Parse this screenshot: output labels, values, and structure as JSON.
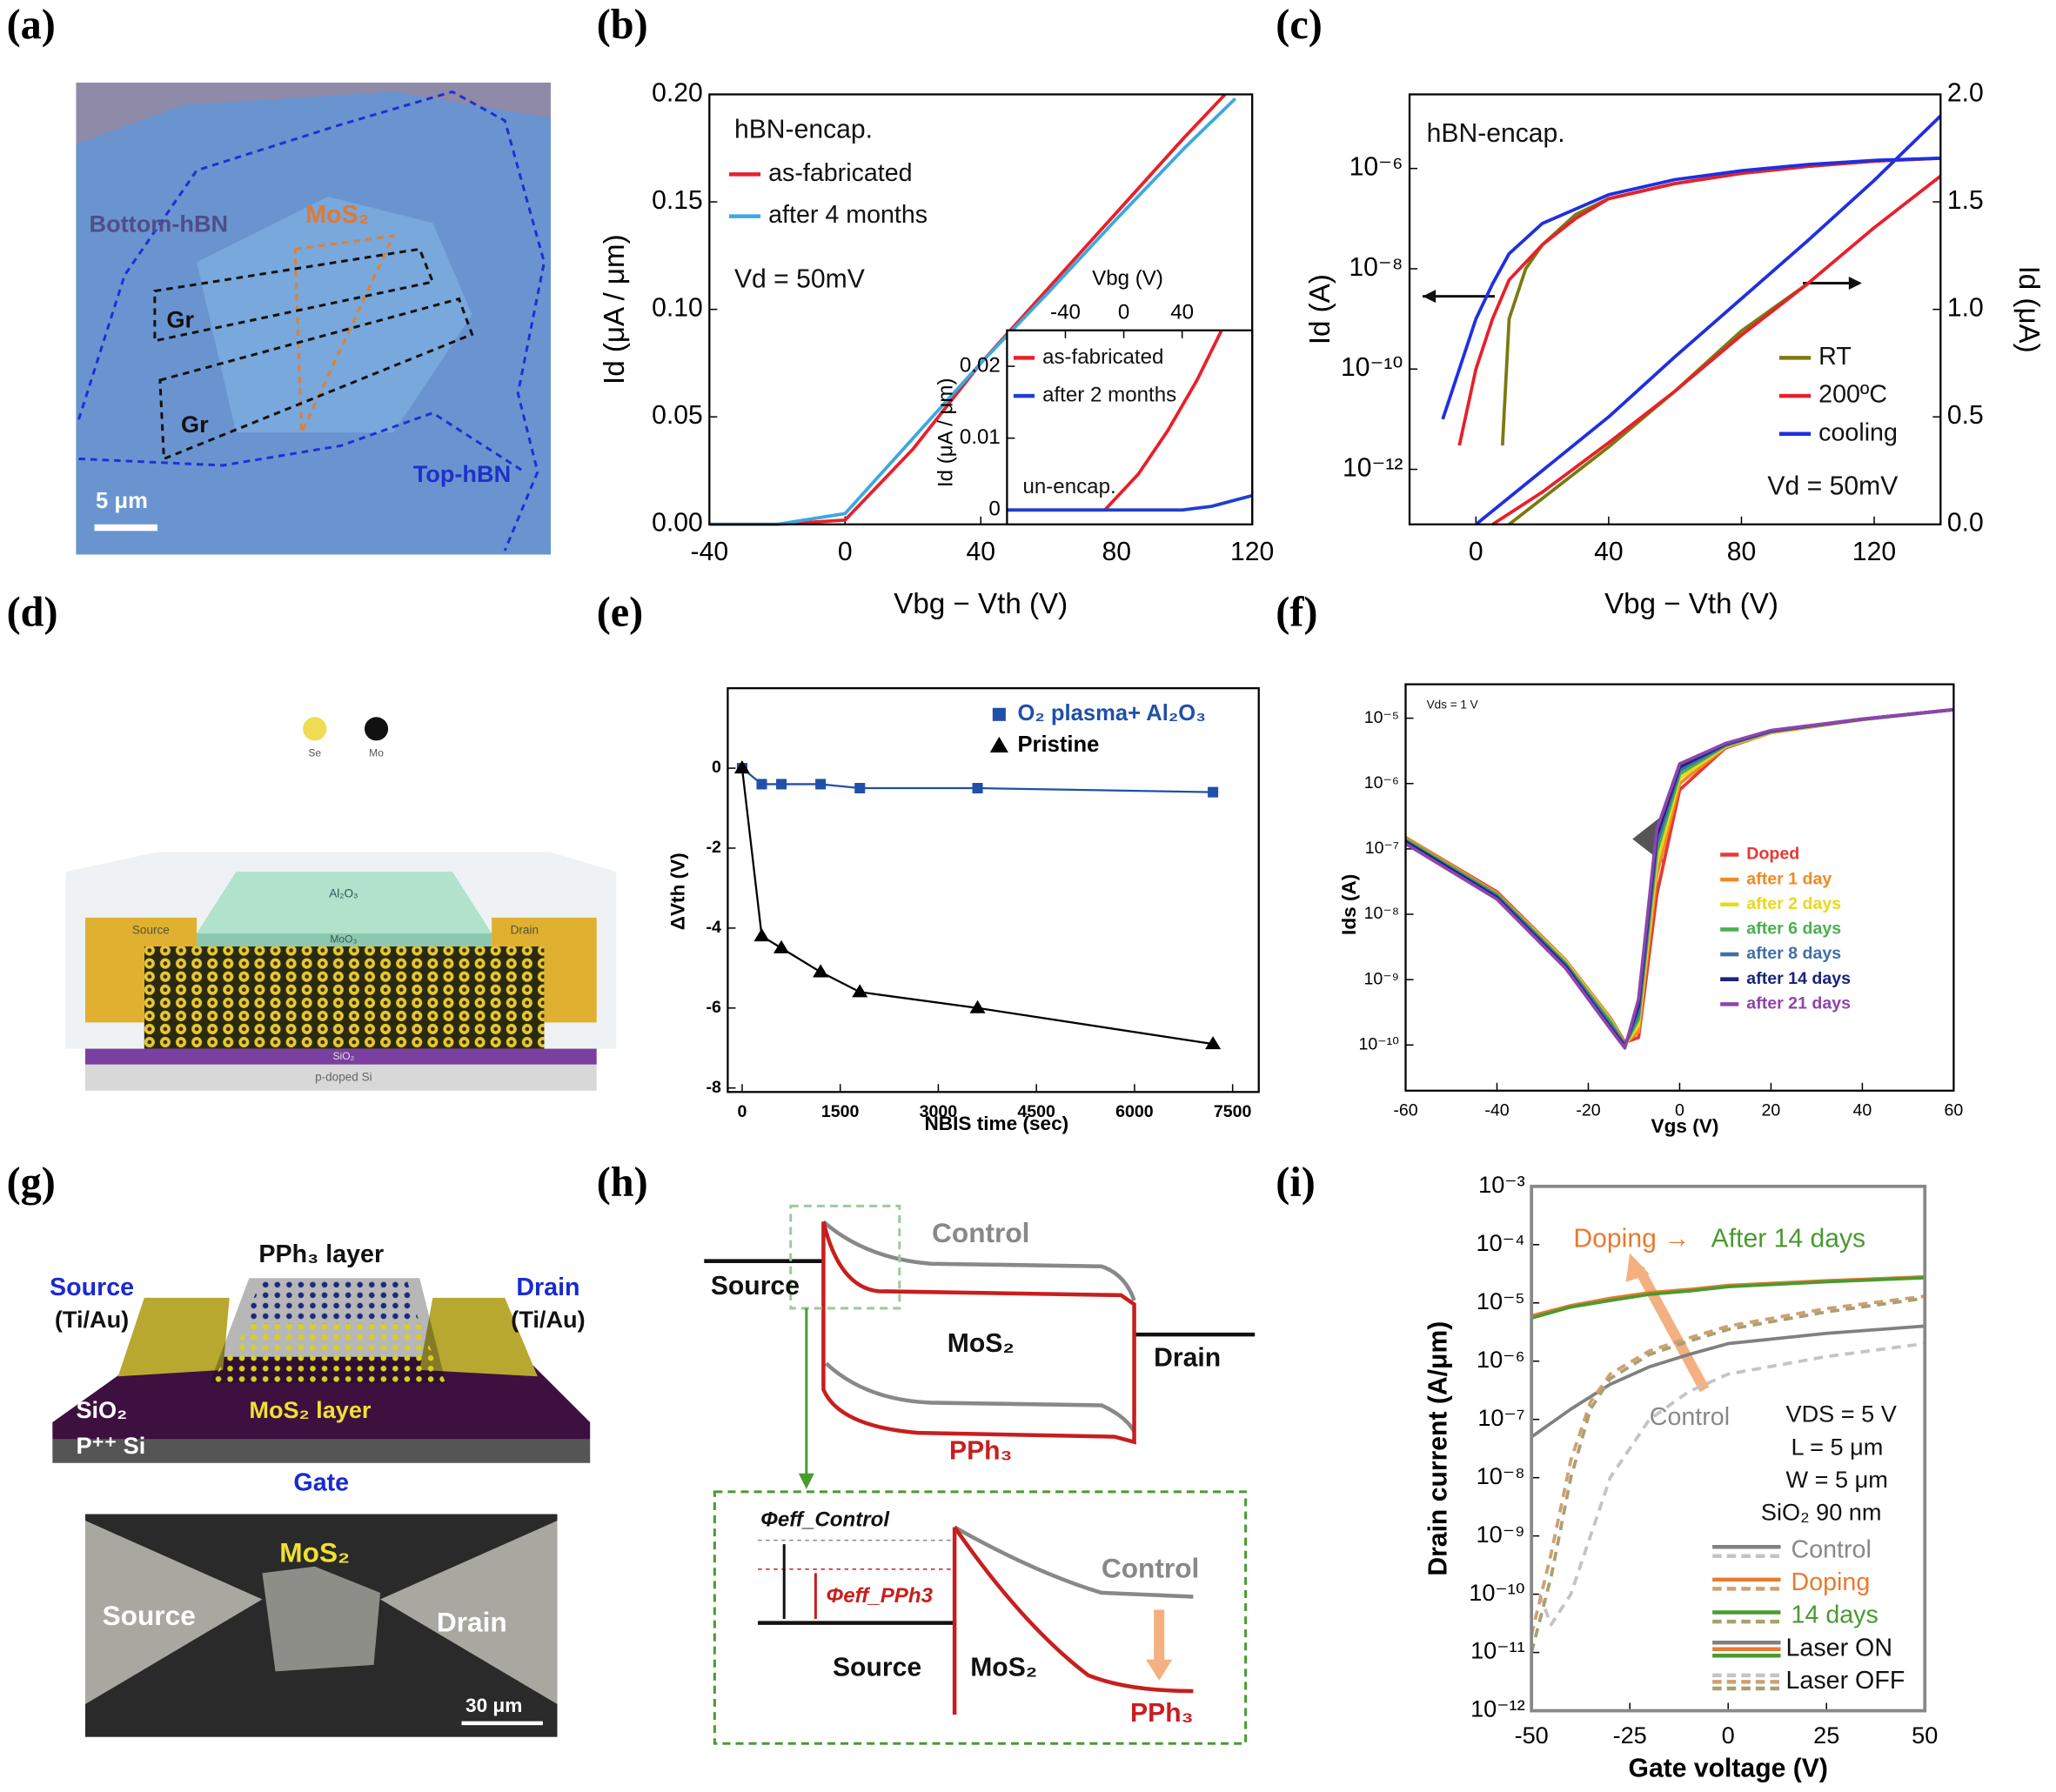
{
  "panel_labels": [
    "(a)",
    "(b)",
    "(c)",
    "(d)",
    "(e)",
    "(f)",
    "(g)",
    "(h)",
    "(i)"
  ],
  "panels": {
    "a": [
      "Bottom-hBN",
      "MoS₂",
      "Gr",
      "Gr",
      "Top-hBN",
      "5 μm"
    ],
    "d": [
      "Se",
      "Mo",
      "Al₂O₃",
      "Source",
      "Drain",
      "MoO₃",
      "SiO₂",
      "p-doped Si"
    ],
    "g": [
      "PPh₃ layer",
      "Source",
      "(Ti/Au)",
      "Drain",
      "(Ti/Au)",
      "SiO₂",
      "MoS₂ layer",
      "P⁺⁺ Si",
      "Gate",
      "MoS₂",
      "Source",
      "Drain",
      "30 μm"
    ],
    "h": [
      "Control",
      "Source",
      "MoS₂",
      "Drain",
      "PPh₃",
      "Φeff_Control",
      "Φeff_PPh3",
      "Control",
      "Source",
      "MoS₂",
      "PPh₃"
    ]
  },
  "chart_data": [
    {
      "type": "line",
      "annotations": [
        "hBN-encap.",
        "Vd = 50mV"
      ],
      "xlabel": "Vbg − Vth (V)",
      "ylabel": "Id (μA / μm)",
      "xlim": [
        -40,
        120
      ],
      "xticks": [
        -40,
        0,
        40,
        80,
        120
      ],
      "ylim": [
        0,
        0.2
      ],
      "yticks": [
        {
          "value": 0,
          "label": "0.00"
        },
        0.05,
        {
          "value": 0.1,
          "label": "0.10"
        },
        0.15,
        {
          "value": 0.2,
          "label": "0.20"
        }
      ],
      "series": [
        {
          "name": "as-fabricated",
          "color": "#e8202a",
          "x": [
            -40,
            -20,
            0,
            20,
            40,
            60,
            80,
            100,
            112
          ],
          "values": [
            0,
            0,
            0.002,
            0.035,
            0.075,
            0.11,
            0.145,
            0.18,
            0.2
          ]
        },
        {
          "name": "after 4 months",
          "color": "#3ca8e0",
          "x": [
            -40,
            -20,
            0,
            20,
            40,
            60,
            80,
            100,
            115
          ],
          "values": [
            0,
            0,
            0.005,
            0.04,
            0.075,
            0.108,
            0.142,
            0.175,
            0.198
          ]
        }
      ]
    },
    {
      "type": "line",
      "annotations": [
        "un-encap."
      ],
      "xlabel": "Vbg (V)",
      "ylabel": "Id (μA / μm)",
      "xlim": [
        -80,
        88
      ],
      "xticks": [
        -40,
        0,
        40
      ],
      "ylim": [
        -0.002,
        0.025
      ],
      "yticks": [
        0,
        0.01,
        0.02
      ],
      "series": [
        {
          "name": "as-fabricated",
          "color": "#e8202a",
          "x": [
            -80,
            -13,
            10,
            30,
            50,
            67
          ],
          "values": [
            0,
            0,
            0.005,
            0.011,
            0.018,
            0.025
          ]
        },
        {
          "name": "after 2 months",
          "color": "#1f3fd0",
          "x": [
            -80,
            40,
            60,
            88
          ],
          "values": [
            0,
            0,
            0.0005,
            0.002
          ]
        }
      ]
    },
    {
      "type": "line",
      "annotations": [
        "hBN-encap.",
        "Vd = 50mV"
      ],
      "xlabel": "Vbg − Vth (V)",
      "ylabel": "Id (A)",
      "y2label": "Id (μA)",
      "log_y": true,
      "xlim": [
        -20,
        140
      ],
      "xticks": [
        0,
        40,
        80,
        120
      ],
      "ylim": [
        8e-14,
        3e-05
      ],
      "yticks": [
        {
          "value": 1e-12,
          "label": "10⁻¹²"
        },
        {
          "value": 1e-10,
          "label": "10⁻¹⁰"
        },
        {
          "value": 1e-08,
          "label": "10⁻⁸"
        },
        {
          "value": 1e-06,
          "label": "10⁻⁶"
        }
      ],
      "y2lim": [
        0,
        2
      ],
      "y2ticks": [
        {
          "value": 0,
          "label": "0.0"
        },
        0.5,
        {
          "value": 1,
          "label": "1.0"
        },
        1.5,
        {
          "value": 2,
          "label": "2.0"
        }
      ],
      "series": [
        {
          "name": "RT",
          "color": "#7a7a10",
          "x": [
            8,
            10,
            15,
            20,
            30,
            40,
            60,
            80,
            100,
            120,
            140
          ],
          "values": [
            3e-12,
            1e-09,
            1e-08,
            3e-08,
            1.2e-07,
            2.5e-07,
            5e-07,
            8e-07,
            1.1e-06,
            1.4e-06,
            1.6e-06
          ]
        },
        {
          "name": "200ºC",
          "color": "#e8202a",
          "x": [
            -5,
            0,
            5,
            10,
            20,
            30,
            40,
            60,
            80,
            100,
            120,
            140
          ],
          "values": [
            3e-12,
            1e-10,
            1e-09,
            6e-09,
            3e-08,
            1e-07,
            2.5e-07,
            5e-07,
            8e-07,
            1.1e-06,
            1.4e-06,
            1.6e-06
          ]
        },
        {
          "name": "cooling",
          "color": "#1f2fe0",
          "x": [
            -10,
            -5,
            0,
            5,
            10,
            20,
            40,
            60,
            80,
            100,
            120,
            140
          ],
          "values": [
            1e-11,
            1e-10,
            1e-09,
            5e-09,
            2e-08,
            8e-08,
            3e-07,
            6e-07,
            9e-07,
            1.2e-06,
            1.45e-06,
            1.6e-06
          ]
        },
        {
          "name": "RT",
          "color": "#7a7a10",
          "axis": "y2",
          "x": [
            10,
            20,
            40,
            60,
            80,
            100
          ],
          "values": [
            0,
            0.12,
            0.36,
            0.62,
            0.9,
            1.12
          ]
        },
        {
          "name": "200ºC",
          "color": "#e8202a",
          "axis": "y2",
          "x": [
            5,
            20,
            40,
            60,
            80,
            100,
            120,
            140
          ],
          "values": [
            0,
            0.15,
            0.38,
            0.62,
            0.88,
            1.12,
            1.38,
            1.62
          ]
        },
        {
          "name": "cooling",
          "color": "#1f2fe0",
          "axis": "y2",
          "x": [
            0,
            20,
            40,
            60,
            80,
            100,
            120,
            140
          ],
          "values": [
            0,
            0.25,
            0.5,
            0.78,
            1.05,
            1.32,
            1.6,
            1.9
          ]
        }
      ]
    },
    {
      "type": "line",
      "xlabel": "NBIS time (sec)",
      "ylabel": "ΔVth (V)",
      "xlim": [
        -220,
        7900
      ],
      "xticks": [
        0,
        1500,
        3000,
        4500,
        6000,
        7500
      ],
      "ylim": [
        -8.1,
        2
      ],
      "yticks": [
        0,
        -2,
        -4,
        -6,
        -8
      ],
      "series": [
        {
          "name": "O₂ plasma+ Al₂O₃",
          "color": "#2050a8",
          "marker": "square",
          "x": [
            0,
            300,
            600,
            1200,
            1800,
            3600,
            7200
          ],
          "values": [
            0,
            -0.4,
            -0.4,
            -0.4,
            -0.5,
            -0.5,
            -0.6
          ]
        },
        {
          "name": "Pristine",
          "color": "#000000",
          "marker": "triangle",
          "x": [
            0,
            300,
            600,
            1200,
            1800,
            3600,
            7200
          ],
          "values": [
            0,
            -4.2,
            -4.5,
            -5.1,
            -5.6,
            -6,
            -6.9
          ]
        }
      ]
    },
    {
      "type": "line",
      "annotations": [
        "Vds = 1 V"
      ],
      "xlabel": "Vgs (V)",
      "ylabel": "Ids (A)",
      "log_y": true,
      "xlim": [
        -60,
        60
      ],
      "xticks": [
        -60,
        -40,
        -20,
        0,
        20,
        40,
        60
      ],
      "ylim": [
        2e-11,
        3.3e-05
      ],
      "yticks": [
        {
          "value": 1e-10,
          "label": "10⁻¹⁰"
        },
        {
          "value": 1e-09,
          "label": "10⁻⁹"
        },
        {
          "value": 1e-08,
          "label": "10⁻⁸"
        },
        {
          "value": 1e-07,
          "label": "10⁻⁷"
        },
        {
          "value": 1e-06,
          "label": "10⁻⁶"
        },
        {
          "value": 1e-05,
          "label": "10⁻⁵"
        }
      ],
      "x": [
        -60,
        -40,
        -25,
        -15,
        -12,
        -9,
        -5,
        0,
        10,
        20,
        40,
        60
      ],
      "series": [
        {
          "name": "Doped",
          "color": "#e53935",
          "values": [
            1.5e-07,
            2.2e-08,
            2e-09,
            2.5e-10,
            1.1e-10,
            1.3e-10,
            2e-08,
            8e-07,
            3.5e-06,
            6e-06,
            9.5e-06,
            1.35e-05
          ]
        },
        {
          "name": "after 1 day",
          "color": "#f08a24",
          "values": [
            1.5e-07,
            2.1e-08,
            2e-09,
            2.5e-10,
            1.05e-10,
            1.6e-10,
            4e-08,
            1e-06,
            3.6e-06,
            6e-06,
            9.5e-06,
            1.35e-05
          ]
        },
        {
          "name": "after 2 days",
          "color": "#e8d81e",
          "values": [
            1.4e-07,
            2e-08,
            1.9e-09,
            2.3e-10,
            1e-10,
            2e-10,
            6e-08,
            1.2e-06,
            3.7e-06,
            6.1e-06,
            9.5e-06,
            1.35e-05
          ]
        },
        {
          "name": "after 6 days",
          "color": "#4caf50",
          "values": [
            1.4e-07,
            2e-08,
            1.8e-09,
            2.2e-10,
            1e-10,
            2.5e-10,
            9e-08,
            1.4e-06,
            3.8e-06,
            6.2e-06,
            9.6e-06,
            1.35e-05
          ]
        },
        {
          "name": "after 8 days",
          "color": "#3f6fa8",
          "values": [
            1.3e-07,
            1.9e-08,
            1.7e-09,
            2e-10,
            1e-10,
            3e-10,
            1.2e-07,
            1.6e-06,
            3.9e-06,
            6.3e-06,
            9.6e-06,
            1.35e-05
          ]
        },
        {
          "name": "after 14 days",
          "color": "#1a237e",
          "values": [
            1.3e-07,
            1.8e-08,
            1.6e-09,
            1.8e-10,
            9.5e-11,
            4e-10,
            1.6e-07,
            1.8e-06,
            4e-06,
            6.4e-06,
            9.7e-06,
            1.35e-05
          ]
        },
        {
          "name": "after 21 days",
          "color": "#8e44ad",
          "values": [
            1.2e-07,
            1.7e-08,
            1.5e-09,
            1.7e-10,
            9e-11,
            5e-10,
            2e-07,
            2e-06,
            4.1e-06,
            6.5e-06,
            9.7e-06,
            1.35e-05
          ]
        }
      ]
    },
    {
      "type": "line",
      "annotations": [
        "Doping →",
        "After 14 days",
        "Control",
        "VDS = 5 V",
        "L = 5 μm",
        "W = 5 μm",
        "SiO₂ 90 nm"
      ],
      "xlabel": "Gate voltage (V)",
      "ylabel": "Drain current (A/μm)",
      "log_y": true,
      "xlim": [
        -50,
        50
      ],
      "xticks": [
        -50,
        -25,
        0,
        25,
        50
      ],
      "ylim": [
        1e-12,
        0.001
      ],
      "yticks": [
        {
          "value": 1e-12,
          "label": "10⁻¹²"
        },
        {
          "value": 1e-11,
          "label": "10⁻¹¹"
        },
        {
          "value": 1e-10,
          "label": "10⁻¹⁰"
        },
        {
          "value": 1e-09,
          "label": "10⁻⁹"
        },
        {
          "value": 1e-08,
          "label": "10⁻⁸"
        },
        {
          "value": 1e-07,
          "label": "10⁻⁷"
        },
        {
          "value": 1e-06,
          "label": "10⁻⁶"
        },
        {
          "value": 1e-05,
          "label": "10⁻⁵"
        },
        {
          "value": 0.0001,
          "label": "10⁻⁴"
        },
        {
          "value": 0.001,
          "label": "10⁻³"
        }
      ],
      "legend_styles": [
        "Laser ON",
        "Laser OFF"
      ],
      "series": [
        {
          "name": "Control",
          "color": "#808080",
          "dashed": false,
          "x": [
            -50,
            -40,
            -30,
            -20,
            -10,
            0,
            25,
            50
          ],
          "values": [
            5e-08,
            1.5e-07,
            4e-07,
            8e-07,
            1.3e-06,
            2e-06,
            3e-06,
            4e-06
          ]
        },
        {
          "name": "Control",
          "color": "#c4c4c4",
          "dashed": true,
          "x": [
            -48,
            -45,
            -40,
            -35,
            -30,
            -20,
            -10,
            0,
            25,
            50
          ],
          "values": [
            1e-10,
            3e-11,
            1e-10,
            1e-09,
            1e-08,
            1e-07,
            3e-07,
            6e-07,
            1.2e-06,
            2e-06
          ]
        },
        {
          "name": "Doping",
          "color": "#e87a30",
          "dashed": false,
          "x": [
            -50,
            -40,
            -30,
            -20,
            -10,
            0,
            25,
            50
          ],
          "values": [
            6e-06,
            9e-06,
            1.2e-05,
            1.5e-05,
            1.7e-05,
            2e-05,
            2.4e-05,
            2.8e-05
          ]
        },
        {
          "name": "Doping",
          "color": "#d0a070",
          "dashed": true,
          "x": [
            -50,
            -45,
            -40,
            -35,
            -30,
            -20,
            -10,
            0,
            25,
            50
          ],
          "values": [
            2e-11,
            5e-10,
            2e-08,
            2e-07,
            6e-07,
            1.5e-06,
            2.5e-06,
            4e-06,
            8e-06,
            1.3e-05
          ]
        },
        {
          "name": "14 days",
          "color": "#4a9a30",
          "dashed": false,
          "x": [
            -50,
            -40,
            -30,
            -20,
            -10,
            0,
            25,
            50
          ],
          "values": [
            5.5e-06,
            8.5e-06,
            1.1e-05,
            1.4e-05,
            1.6e-05,
            1.9e-05,
            2.3e-05,
            2.7e-05
          ]
        },
        {
          "name": "14 days",
          "color": "#a8a070",
          "dashed": true,
          "x": [
            -50,
            -45,
            -40,
            -35,
            -30,
            -20,
            -10,
            0,
            25,
            50
          ],
          "values": [
            1e-11,
            2e-10,
            1e-08,
            1.5e-07,
            5e-07,
            1.3e-06,
            2.2e-06,
            3.5e-06,
            7e-06,
            1.2e-05
          ]
        }
      ]
    }
  ]
}
